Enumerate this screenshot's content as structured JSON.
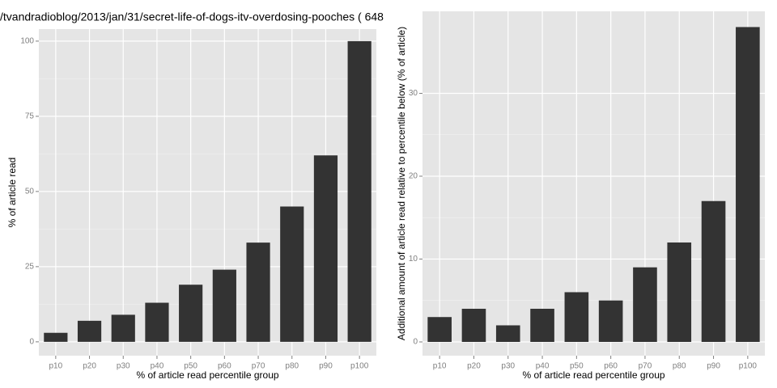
{
  "chart_data": [
    {
      "type": "bar",
      "title": "/tvandradioblog/2013/jan/31/secret-life-of-dogs-itv-overdosing-pooches ( 648",
      "x_label": "% of article read percentile group",
      "y_label": "% of article read",
      "categories": [
        "p10",
        "p20",
        "p30",
        "p40",
        "p50",
        "p60",
        "p70",
        "p80",
        "p90",
        "p100"
      ],
      "values": [
        3,
        7,
        9,
        13,
        19,
        24,
        33,
        45,
        62,
        100
      ],
      "color": "#333333",
      "ylim": [
        -4.6,
        104
      ],
      "yticks": [
        0,
        25,
        50,
        75,
        100
      ],
      "grid": true
    },
    {
      "type": "bar",
      "x_label": "% of article read percentile group",
      "y_label": "Additional amount of article read relative to percentile below (% of article)",
      "categories": [
        "p10",
        "p20",
        "p30",
        "p40",
        "p50",
        "p60",
        "p70",
        "p80",
        "p90",
        "p100"
      ],
      "values": [
        3,
        4,
        2,
        4,
        6,
        5,
        9,
        12,
        17,
        38
      ],
      "color": "#333333",
      "ylim": [
        -1.66,
        39.9
      ],
      "yticks": [
        0,
        10,
        20,
        30
      ],
      "grid": true
    }
  ]
}
